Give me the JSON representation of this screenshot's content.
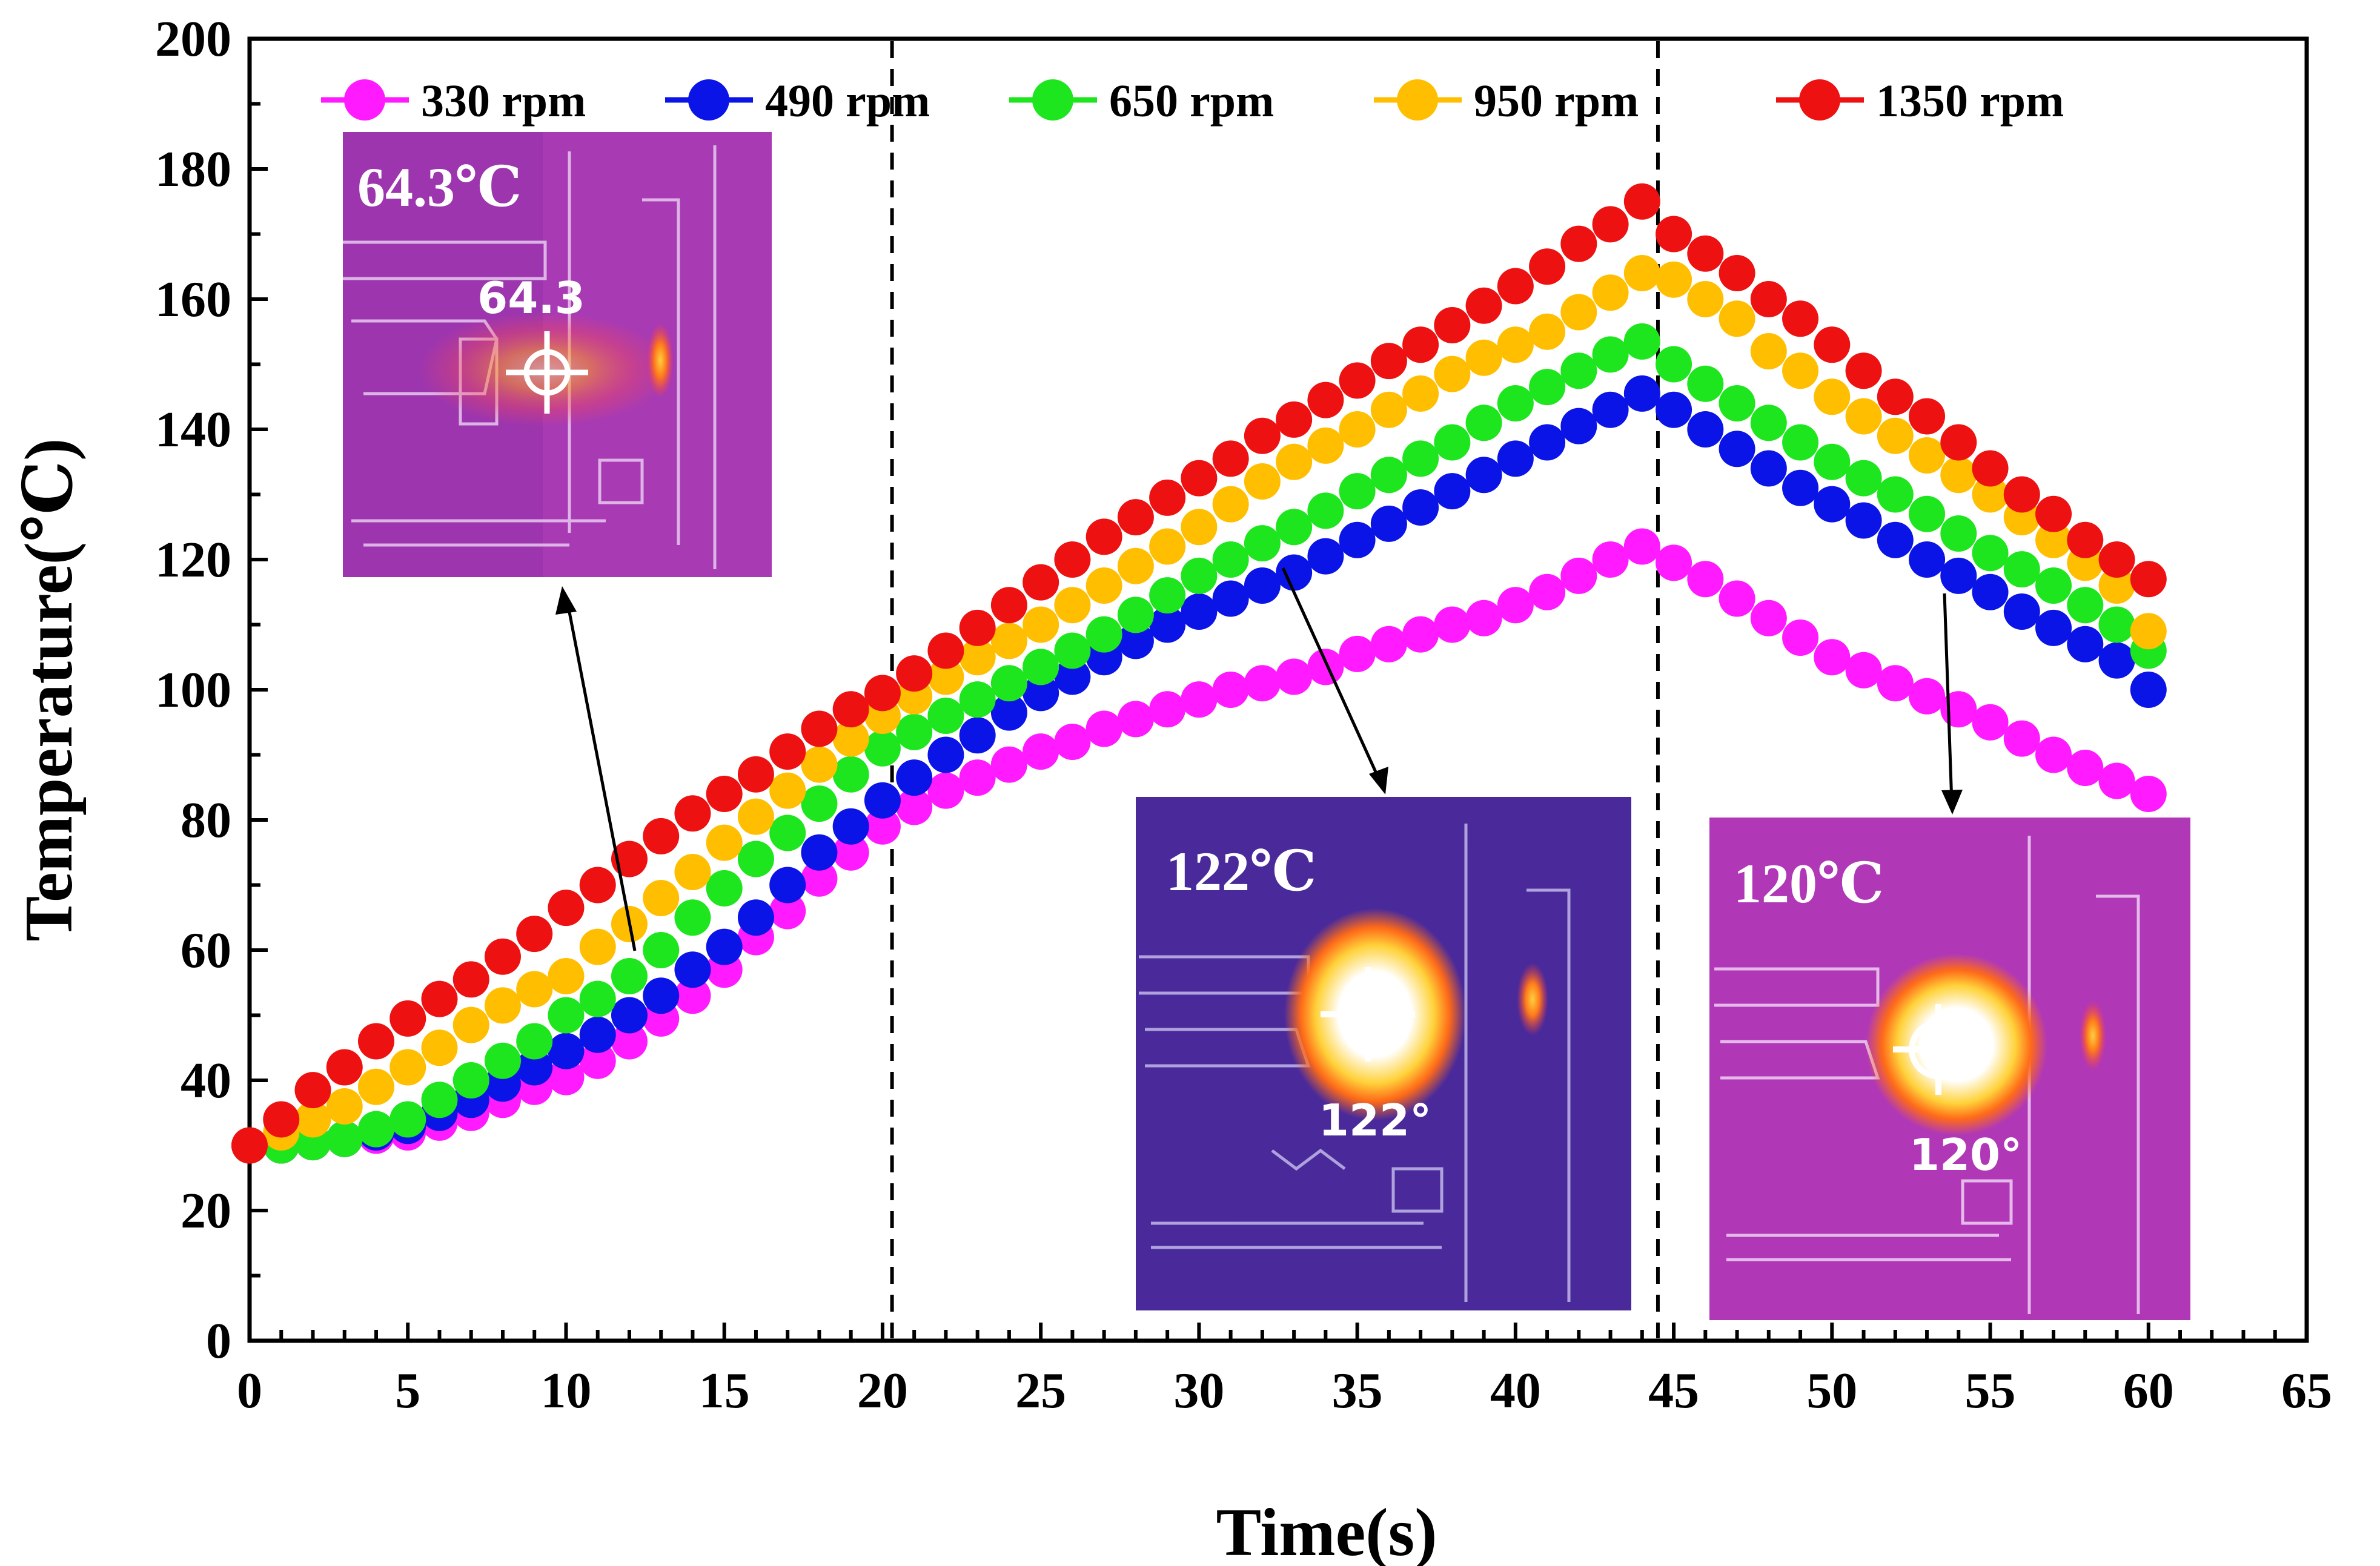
{
  "chart_data": {
    "type": "scatter",
    "xlabel": "Time(s)",
    "ylabel": "Temperature(℃)",
    "xlim": [
      0,
      65
    ],
    "ylim": [
      0,
      200
    ],
    "xticks": [
      0,
      5,
      10,
      15,
      20,
      25,
      30,
      35,
      40,
      45,
      50,
      55,
      60,
      65
    ],
    "yticks": [
      0,
      20,
      40,
      60,
      80,
      100,
      120,
      140,
      160,
      180,
      200
    ],
    "legend_position": "top",
    "vlines": [
      20.3,
      44.5
    ],
    "x": [
      0,
      1,
      2,
      3,
      4,
      5,
      6,
      7,
      8,
      9,
      10,
      11,
      12,
      13,
      14,
      15,
      16,
      17,
      18,
      19,
      20,
      21,
      22,
      23,
      24,
      25,
      26,
      27,
      28,
      29,
      30,
      31,
      32,
      33,
      34,
      35,
      36,
      37,
      38,
      39,
      40,
      41,
      42,
      43,
      44,
      45,
      46,
      47,
      48,
      49,
      50,
      51,
      52,
      53,
      54,
      55,
      56,
      57,
      58,
      59,
      60
    ],
    "series": [
      {
        "name": "330 rpm",
        "color": "#ff1aff",
        "values": [
          30,
          30,
          30.5,
          31,
          31.5,
          32,
          33.5,
          35,
          37,
          39,
          40.5,
          43,
          46,
          49.5,
          53,
          57,
          62,
          66,
          71,
          75,
          79,
          82,
          84.5,
          86.5,
          88.5,
          90.5,
          92,
          94,
          95.5,
          97,
          98.5,
          100,
          101,
          102,
          103.5,
          105.5,
          107,
          108.5,
          110,
          111,
          113,
          115,
          117.5,
          120,
          122,
          119.5,
          117,
          114,
          111,
          108,
          105,
          103,
          101,
          99,
          97,
          95,
          92.5,
          90,
          88,
          86,
          84
        ]
      },
      {
        "name": "490 rpm",
        "color": "#0a14e6",
        "values": [
          30,
          30,
          30.5,
          31,
          32,
          33,
          35,
          37,
          39.5,
          42,
          44.5,
          47,
          50,
          53,
          57,
          60.5,
          65,
          70,
          75,
          79,
          83,
          86.5,
          90,
          93,
          96.5,
          99.5,
          102,
          105,
          107.5,
          110,
          112,
          114,
          116,
          118,
          120.5,
          123,
          125.5,
          128,
          130.5,
          133,
          135.5,
          138,
          140.5,
          143,
          145.5,
          143,
          140,
          137,
          134,
          131,
          128.5,
          126,
          123,
          120,
          117.5,
          115,
          112,
          109.5,
          107,
          104.5,
          100
        ]
      },
      {
        "name": "650 rpm",
        "color": "#1ee61e",
        "values": [
          30,
          30,
          30.5,
          31,
          32.5,
          34,
          37,
          40,
          43,
          46,
          50,
          52.5,
          56,
          60,
          65,
          69.5,
          74,
          78,
          82.5,
          87,
          91,
          93.5,
          96,
          98.5,
          101,
          103.5,
          106,
          108.5,
          111.5,
          114.5,
          117.5,
          120,
          122.5,
          125,
          127.5,
          130.5,
          133,
          135.5,
          138,
          141,
          144,
          146.5,
          149,
          151.5,
          153.5,
          150,
          147,
          144,
          141,
          138,
          135,
          132.5,
          130,
          127,
          124,
          121,
          118.5,
          116,
          113,
          110,
          106
        ]
      },
      {
        "name": "950 rpm",
        "color": "#ffbf00",
        "values": [
          30,
          32,
          34,
          36,
          39,
          42,
          45,
          48.5,
          51.5,
          54,
          56,
          60.5,
          64,
          68,
          72,
          76.5,
          80.5,
          84.5,
          88.5,
          92.5,
          96,
          99,
          102,
          105,
          107.5,
          110,
          113,
          116,
          119,
          122,
          125,
          128.5,
          132,
          135,
          137.5,
          140,
          143,
          145.5,
          148.5,
          151,
          153,
          155,
          158,
          161,
          164,
          163,
          160,
          157,
          152,
          149,
          145,
          142,
          139,
          136,
          133,
          130,
          126.5,
          123,
          119.5,
          116,
          109
        ]
      },
      {
        "name": "1350 rpm",
        "color": "#ee1111",
        "values": [
          30,
          34,
          38.5,
          42,
          46,
          49.5,
          52.5,
          55.5,
          59,
          62.5,
          66.5,
          70,
          74,
          77.5,
          81,
          84,
          87,
          90.5,
          94,
          97,
          99.5,
          102.5,
          106,
          109.5,
          113,
          116.5,
          120,
          123.5,
          126.5,
          129.5,
          132.5,
          135.5,
          139,
          141.5,
          144.5,
          147.5,
          150.5,
          153,
          156,
          159,
          162,
          165,
          168.5,
          171.5,
          175,
          170,
          167,
          164,
          160,
          157,
          153,
          149,
          145,
          142,
          138,
          134,
          130,
          127,
          123,
          120,
          117
        ]
      }
    ],
    "insets": [
      {
        "label": "64.3℃",
        "reading": "64.3"
      },
      {
        "label": "122℃",
        "reading": "122°"
      },
      {
        "label": "120℃",
        "reading": "120°"
      }
    ]
  }
}
